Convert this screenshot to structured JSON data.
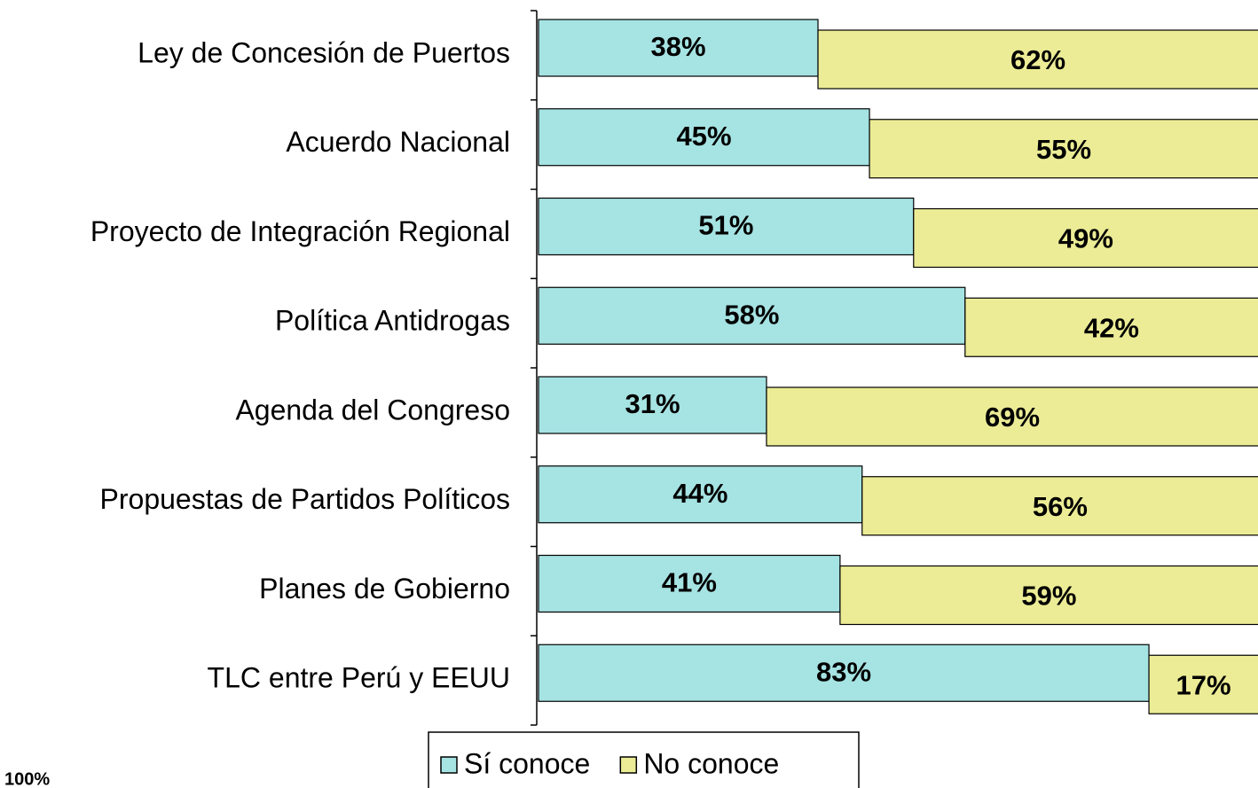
{
  "chart_data": {
    "type": "stacked_bar_horizontal",
    "categories": [
      "Ley de Concesión de Puertos",
      "Acuerdo Nacional",
      "Proyecto de Integración Regional",
      "Política Antidrogas",
      "Agenda del Congreso",
      "Propuestas de Partidos Políticos",
      "Planes de Gobierno",
      "TLC entre Perú y EEUU"
    ],
    "series": [
      {
        "name": "Sí conoce",
        "color": "#a6e3e3",
        "values": [
          38,
          45,
          51,
          58,
          31,
          44,
          41,
          83
        ],
        "value_labels": [
          "38%",
          "45%",
          "51%",
          "58%",
          "31%",
          "44%",
          "41%",
          "83%"
        ]
      },
      {
        "name": "No conoce",
        "color": "#ecec96",
        "values": [
          62,
          55,
          49,
          42,
          69,
          56,
          59,
          17
        ],
        "value_labels": [
          "62%",
          "55%",
          "49%",
          "42%",
          "69%",
          "56%",
          "59%",
          "17%"
        ]
      }
    ],
    "xlim": [
      0,
      100
    ],
    "annotation": "100%",
    "legend": "bottom"
  }
}
